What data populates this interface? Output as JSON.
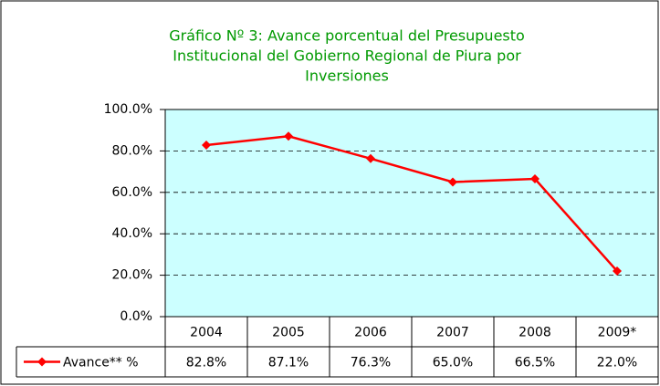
{
  "chart_data": {
    "type": "line",
    "title": [
      "Gráfico Nº 3: Avance porcentual del Presupuesto",
      "Institucional del Gobierno Regional de Piura por",
      "Inversiones"
    ],
    "categories": [
      "2004",
      "2005",
      "2006",
      "2007",
      "2008",
      "2009*"
    ],
    "series": [
      {
        "name": "Avance** %",
        "color": "#ff0000",
        "values": [
          82.8,
          87.1,
          76.3,
          65.0,
          66.5,
          22.0
        ],
        "value_labels": [
          "82.8%",
          "87.1%",
          "76.3%",
          "65.0%",
          "66.5%",
          "22.0%"
        ]
      }
    ],
    "ylim": [
      0,
      100
    ],
    "yticks": [
      {
        "value": 0,
        "label": "0.0%"
      },
      {
        "value": 20,
        "label": "20.0%"
      },
      {
        "value": 40,
        "label": "40.0%"
      },
      {
        "value": 60,
        "label": "60.0%"
      },
      {
        "value": 80,
        "label": "80.0%"
      },
      {
        "value": 100,
        "label": "100.0%"
      }
    ],
    "grid": true,
    "plot_background": "#ccffff"
  }
}
